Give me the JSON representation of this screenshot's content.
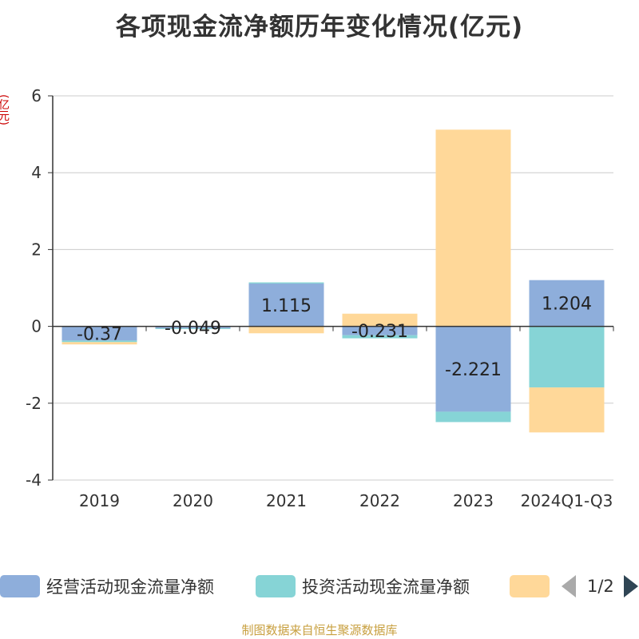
{
  "title": "各项现金流净额历年变化情况(亿元)",
  "unit_label": "(亿元)",
  "source": "制图数据来自恒生聚源数据库",
  "legend": {
    "items": [
      {
        "label": "经营活动现金流量净额",
        "color": "#8eaedb"
      },
      {
        "label": "投资活动现金流量净额",
        "color": "#86d4d6"
      },
      {
        "label": "",
        "color": "#ffd899"
      }
    ],
    "page_text": "1/2"
  },
  "chart_data": {
    "type": "bar",
    "stacked": true,
    "categories": [
      "2019",
      "2020",
      "2021",
      "2022",
      "2023",
      "2024Q1-Q3"
    ],
    "ylim": [
      -4,
      6
    ],
    "yticks": [
      -4,
      -2,
      0,
      2,
      4,
      6
    ],
    "grid": true,
    "series": [
      {
        "name": "经营活动现金流量净额",
        "color": "#8eaedb",
        "values": [
          -0.37,
          -0.049,
          1.115,
          -0.231,
          -2.221,
          1.204
        ],
        "labels": [
          "-0.37",
          "-0.049",
          "1.115",
          "-0.231",
          "-2.221",
          "1.204"
        ]
      },
      {
        "name": "投资活动现金流量净额",
        "color": "#86d4d6",
        "values": [
          -0.04,
          -0.02,
          0.03,
          -0.08,
          -0.27,
          -1.59
        ]
      },
      {
        "color": "#ffd899",
        "values": [
          -0.06,
          0.01,
          -0.18,
          0.33,
          5.12,
          -1.17
        ]
      }
    ]
  }
}
